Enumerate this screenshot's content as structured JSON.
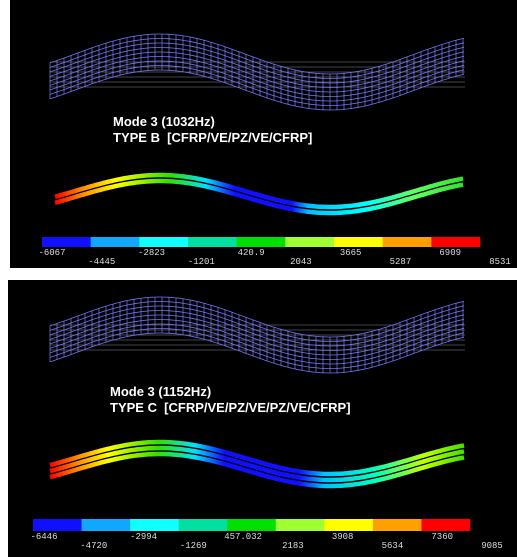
{
  "panels": [
    {
      "mode": "Mode 3 (1032Hz)",
      "type": "TYPE B  [CFRP/VE/PZ/VE/CFRP]",
      "scale": [
        "-6067",
        "-4445",
        "-2823",
        "-1201",
        "420.9",
        "2043",
        "3665",
        "5287",
        "6909",
        "8531"
      ]
    },
    {
      "mode": "Mode 3 (1152Hz)",
      "type": "TYPE C  [CFRP/VE/PZ/VE/PZ/VE/CFRP]",
      "scale": [
        "-6446",
        "-4720",
        "-2994",
        "-1269",
        "457.032",
        "2183",
        "3908",
        "5634",
        "7360",
        "9085"
      ]
    }
  ]
}
